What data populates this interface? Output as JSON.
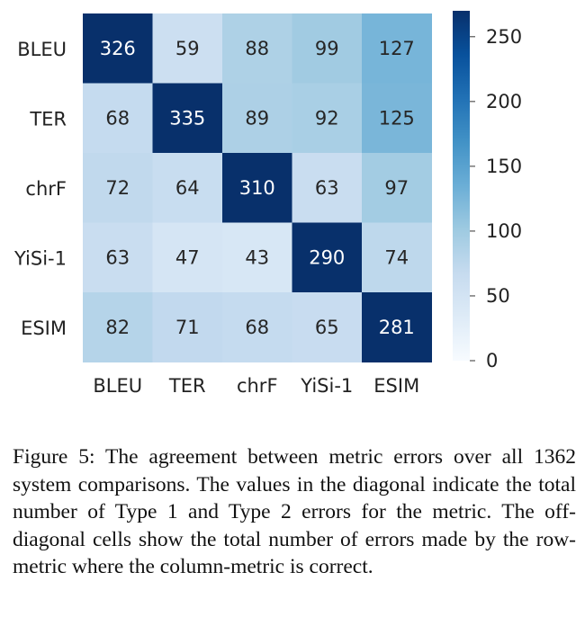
{
  "chart_data": {
    "type": "heatmap",
    "rows": [
      "BLEU",
      "TER",
      "chrF",
      "YiSi-1",
      "ESIM"
    ],
    "columns": [
      "BLEU",
      "TER",
      "chrF",
      "YiSi-1",
      "ESIM"
    ],
    "values": [
      [
        326,
        59,
        88,
        99,
        127
      ],
      [
        68,
        335,
        89,
        92,
        125
      ],
      [
        72,
        64,
        310,
        63,
        97
      ],
      [
        63,
        47,
        43,
        290,
        74
      ],
      [
        82,
        71,
        68,
        65,
        281
      ]
    ],
    "color_scale": {
      "min": 0,
      "max": 270,
      "low_color": "#f7fbff",
      "high_color": "#08306b",
      "ticks": [
        0,
        50,
        100,
        150,
        200,
        250
      ]
    }
  },
  "caption": "Figure 5: The agreement between metric errors over all 1362 system comparisons. The values in the diagonal indicate the total number of Type 1 and Type 2 errors for the metric. The off-diagonal cells show the total number of errors made by the row-metric where the column-metric is correct."
}
